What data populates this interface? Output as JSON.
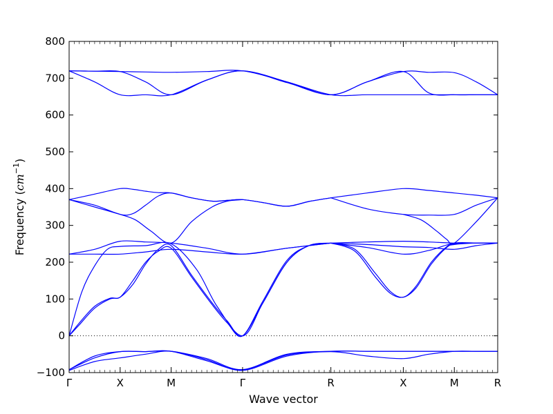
{
  "chart_data": {
    "type": "line",
    "title": "",
    "xlabel": "Wave vector",
    "ylabel_text": "Frequency (",
    "ylabel_unit": "cm",
    "ylabel_sup": "−1",
    "ylabel_close": ")",
    "ylim": [
      -100,
      800
    ],
    "yticks": [
      -100,
      0,
      100,
      200,
      300,
      400,
      500,
      600,
      700,
      800
    ],
    "ytick_labels": [
      "−100",
      "0",
      "100",
      "200",
      "300",
      "400",
      "500",
      "600",
      "700",
      "800"
    ],
    "xlim": [
      0,
      8.4
    ],
    "high_symmetry_points": [
      {
        "label": "Γ",
        "x": 0
      },
      {
        "label": "X",
        "x": 1
      },
      {
        "label": "M",
        "x": 2
      },
      {
        "label": "Γ",
        "x": 3.4
      },
      {
        "label": "R",
        "x": 5.13
      },
      {
        "label": "X",
        "x": 6.55
      },
      {
        "label": "M",
        "x": 7.55
      },
      {
        "label": "R",
        "x": 8.4
      }
    ],
    "zero_line": true,
    "grid": false,
    "line_color": "#0000ff",
    "series": [
      {
        "x": [
          0,
          0.5,
          1.0,
          1.5,
          2.0,
          2.7,
          3.4,
          4.27,
          5.13,
          5.84,
          6.55,
          7.05,
          7.55,
          7.98,
          8.4
        ],
        "values": [
          -94,
          -70,
          -60,
          -50,
          -42,
          -65,
          -94,
          -55,
          -43,
          -55,
          -62,
          -50,
          -42,
          -42,
          -42
        ]
      },
      {
        "x": [
          0,
          0.5,
          1.0,
          1.5,
          2.0,
          2.7,
          3.4,
          4.27,
          5.13,
          5.84,
          6.55,
          7.05,
          7.55,
          7.98,
          8.4
        ],
        "values": [
          -92,
          -60,
          -43,
          -43,
          -42,
          -68,
          -92,
          -50,
          -42,
          -42,
          -42,
          -42,
          -42,
          -42,
          -42
        ]
      },
      {
        "x": [
          0,
          0.5,
          1.0,
          1.5,
          2.0,
          2.7,
          3.4,
          4.27,
          5.13,
          5.84,
          6.55,
          7.05,
          7.55,
          7.98,
          8.4
        ],
        "values": [
          -92,
          -55,
          -43,
          -43,
          -42,
          -62,
          -92,
          -52,
          -42,
          -42,
          -42,
          -42,
          -42,
          -42,
          -42
        ]
      },
      {
        "x": [
          0,
          0.2,
          0.5,
          0.8,
          1.0,
          1.25,
          1.5,
          1.75,
          2.0,
          2.4,
          2.8,
          3.1,
          3.4,
          3.8,
          4.27,
          4.7,
          5.13
        ],
        "values": [
          0,
          30,
          75,
          100,
          105,
          140,
          195,
          235,
          245,
          165,
          90,
          40,
          0,
          90,
          200,
          245,
          252
        ]
      },
      {
        "x": [
          0,
          0.2,
          0.5,
          0.8,
          1.0,
          1.25,
          1.5,
          1.75,
          2.0,
          2.4,
          2.8,
          3.1,
          3.4,
          3.8,
          4.27,
          4.7,
          5.13
        ],
        "values": [
          0,
          35,
          80,
          102,
          105,
          150,
          200,
          230,
          238,
          160,
          85,
          35,
          0,
          95,
          205,
          245,
          252
        ]
      },
      {
        "x": [
          0,
          0.25,
          0.5,
          0.75,
          1.0,
          1.5,
          2.0,
          2.5,
          2.9,
          3.4,
          3.8,
          4.27,
          4.7,
          5.13
        ],
        "values": [
          0,
          120,
          190,
          235,
          243,
          245,
          250,
          180,
          80,
          0,
          90,
          200,
          245,
          252
        ]
      },
      {
        "x": [
          0,
          0.5,
          1.0,
          1.5,
          2.0,
          2.7,
          3.4,
          4.27,
          5.13
        ],
        "values": [
          222,
          222,
          222,
          228,
          235,
          228,
          222,
          238,
          252
        ]
      },
      {
        "x": [
          0,
          0.5,
          1.0,
          1.5,
          2.0,
          2.7,
          3.4,
          4.27,
          5.13
        ],
        "values": [
          222,
          235,
          257,
          255,
          252,
          238,
          222,
          238,
          252
        ]
      },
      {
        "x": [
          5.13,
          5.6,
          6.0,
          6.3,
          6.55,
          6.8,
          7.1,
          7.4,
          7.55,
          7.98,
          8.4
        ],
        "values": [
          252,
          230,
          160,
          115,
          105,
          130,
          195,
          240,
          248,
          252,
          252
        ]
      },
      {
        "x": [
          5.13,
          5.6,
          6.0,
          6.3,
          6.55,
          6.8,
          7.1,
          7.4,
          7.55,
          7.98,
          8.4
        ],
        "values": [
          252,
          235,
          170,
          120,
          105,
          135,
          200,
          242,
          250,
          252,
          252
        ]
      },
      {
        "x": [
          5.13,
          5.84,
          6.55,
          7.05,
          7.55,
          7.98,
          8.4
        ],
        "values": [
          252,
          248,
          242,
          240,
          235,
          245,
          252
        ]
      },
      {
        "x": [
          5.13,
          5.84,
          6.55,
          7.05,
          7.55,
          7.98,
          8.4
        ],
        "values": [
          252,
          240,
          222,
          232,
          252,
          252,
          252
        ]
      },
      {
        "x": [
          5.13,
          5.84,
          6.55,
          7.05,
          7.55,
          7.98,
          8.4
        ],
        "values": [
          252,
          255,
          257,
          255,
          252,
          252,
          252
        ]
      },
      {
        "x": [
          0,
          0.5,
          1.0,
          1.25,
          1.5,
          1.75,
          2.0,
          2.4,
          2.8,
          3.1,
          3.4,
          3.8,
          4.27,
          4.7,
          5.13
        ],
        "values": [
          370,
          355,
          330,
          332,
          355,
          380,
          388,
          375,
          366,
          368,
          370,
          362,
          352,
          365,
          375
        ]
      },
      {
        "x": [
          0,
          0.5,
          1.0,
          1.25,
          1.5,
          1.75,
          2.0,
          2.4,
          2.8,
          3.1,
          3.4,
          3.8,
          4.27,
          4.7,
          5.13
        ],
        "values": [
          370,
          385,
          400,
          398,
          393,
          389,
          388,
          375,
          366,
          368,
          370,
          362,
          352,
          365,
          375
        ]
      },
      {
        "x": [
          0,
          0.5,
          1.0,
          1.3,
          1.6,
          2.0,
          2.4,
          2.8,
          3.1,
          3.4
        ],
        "values": [
          370,
          350,
          330,
          315,
          285,
          252,
          310,
          350,
          366,
          370
        ]
      },
      {
        "x": [
          5.13,
          5.84,
          6.55,
          7.05,
          7.55,
          7.98,
          8.4
        ],
        "values": [
          375,
          388,
          400,
          395,
          388,
          382,
          375
        ]
      },
      {
        "x": [
          5.13,
          5.84,
          6.55,
          7.05,
          7.55,
          7.98,
          8.4
        ],
        "values": [
          375,
          345,
          330,
          328,
          330,
          355,
          375
        ]
      },
      {
        "x": [
          6.55,
          6.9,
          7.2,
          7.4,
          7.55,
          7.98,
          8.4
        ],
        "values": [
          330,
          315,
          285,
          262,
          252,
          310,
          375
        ]
      },
      {
        "x": [
          0,
          0.5,
          1.0,
          1.5,
          2.0,
          2.7,
          3.4,
          4.27,
          5.13,
          5.84,
          6.55,
          7.05,
          7.55,
          7.98,
          8.4
        ],
        "values": [
          720,
          719,
          718,
          717,
          716,
          718,
          720,
          690,
          655,
          690,
          718,
          716,
          715,
          690,
          655
        ]
      },
      {
        "x": [
          0,
          0.5,
          1.0,
          1.5,
          2.0,
          2.7,
          3.4,
          4.27,
          5.13,
          5.84,
          6.55,
          7.05,
          7.55,
          7.98,
          8.4
        ],
        "values": [
          720,
          690,
          655,
          655,
          655,
          695,
          720,
          690,
          655,
          655,
          655,
          655,
          655,
          655,
          655
        ]
      },
      {
        "x": [
          0,
          0.5,
          1.0,
          1.5,
          2.0,
          2.7,
          3.4,
          4.27,
          5.13,
          5.84,
          6.55,
          7.05,
          7.55,
          7.98,
          8.4
        ],
        "values": [
          720,
          719,
          718,
          690,
          655,
          695,
          720,
          688,
          655,
          690,
          718,
          660,
          655,
          655,
          655
        ]
      }
    ]
  }
}
